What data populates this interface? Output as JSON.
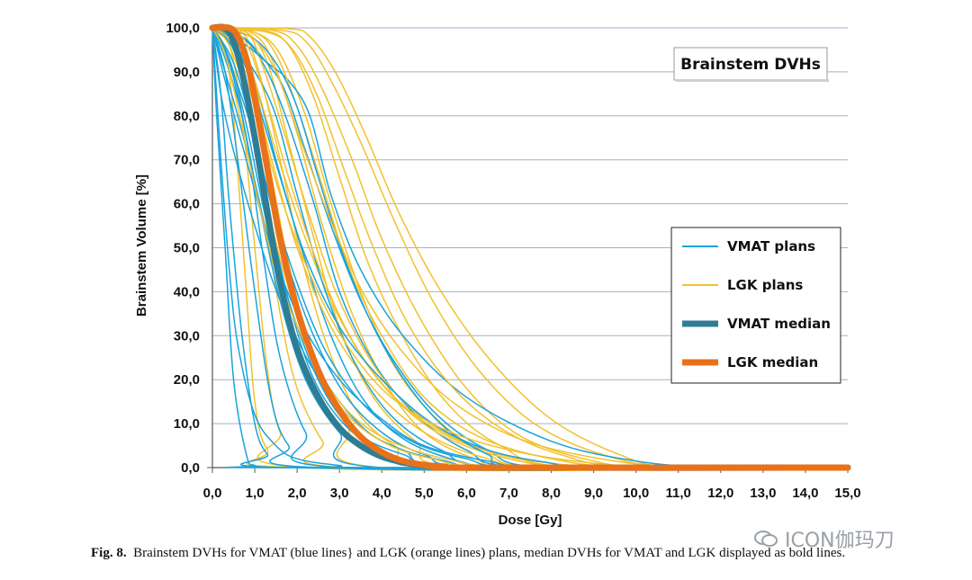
{
  "chart_data": {
    "type": "line",
    "title": "Brainstem DVHs",
    "xlabel": "Dose [Gy]",
    "ylabel": "Brainstem Volume [%]",
    "xlim": [
      0,
      15
    ],
    "ylim": [
      0,
      100
    ],
    "xticks": [
      "0,0",
      "1,0",
      "2,0",
      "3,0",
      "4,0",
      "5,0",
      "6,0",
      "7,0",
      "8,0",
      "9,0",
      "10,0",
      "11,0",
      "12,0",
      "13,0",
      "14,0",
      "15,0"
    ],
    "yticks": [
      "0,0",
      "10,0",
      "20,0",
      "30,0",
      "40,0",
      "50,0",
      "60,0",
      "70,0",
      "80,0",
      "90,0",
      "100,0"
    ],
    "grid": "horizontal",
    "legend_position": "right",
    "colors": {
      "vmat": "#1aa3dc",
      "lgk": "#f2c12e",
      "vmat_median": "#2f7d95",
      "lgk_median": "#e8711a",
      "grid": "#9fb3c8"
    },
    "legend": [
      {
        "label": "VMAT plans",
        "key": "vmat",
        "width": 2
      },
      {
        "label": "LGK plans",
        "key": "lgk",
        "width": 2
      },
      {
        "label": "VMAT median",
        "key": "vmat_median",
        "width": 7
      },
      {
        "label": "LGK median",
        "key": "lgk_median",
        "width": 7
      }
    ],
    "series": [
      {
        "name": "VMAT median",
        "key": "vmat_median",
        "x": [
          0.0,
          0.3,
          0.5,
          0.7,
          1.0,
          1.3,
          1.6,
          2.0,
          2.5,
          3.0,
          3.5,
          4.0,
          4.5,
          5.0,
          5.5,
          6.0,
          15.0
        ],
        "y": [
          100,
          100,
          97,
          90,
          75,
          58,
          42,
          27,
          16,
          9,
          5,
          2.5,
          1.2,
          0.5,
          0.2,
          0,
          0
        ]
      },
      {
        "name": "LGK median",
        "key": "lgk_median",
        "x": [
          0.0,
          0.4,
          0.6,
          0.8,
          1.0,
          1.3,
          1.6,
          2.0,
          2.5,
          3.0,
          3.5,
          4.0,
          4.5,
          5.0,
          5.5,
          6.0,
          15.0
        ],
        "y": [
          100,
          100,
          98,
          93,
          84,
          68,
          52,
          36,
          22,
          13,
          7,
          3.5,
          1.5,
          0.6,
          0.2,
          0,
          0
        ]
      }
    ],
    "vmat_plans": [
      {
        "x": [
          0.0,
          0.1,
          0.3,
          0.5,
          0.8,
          1.0,
          1.5
        ],
        "y": [
          100,
          80,
          50,
          20,
          3,
          0.5,
          0
        ]
      },
      {
        "x": [
          0.0,
          0.2,
          0.4,
          0.7,
          1.0,
          1.3,
          1.8
        ],
        "y": [
          100,
          85,
          60,
          30,
          10,
          3,
          0
        ]
      },
      {
        "x": [
          0.0,
          0.3,
          0.6,
          1.0,
          1.4,
          1.8,
          2.5
        ],
        "y": [
          100,
          90,
          70,
          40,
          15,
          5,
          0
        ]
      },
      {
        "x": [
          0.0,
          0.4,
          0.8,
          1.2,
          1.6,
          2.2,
          3.0
        ],
        "y": [
          100,
          92,
          75,
          48,
          25,
          8,
          0
        ]
      },
      {
        "x": [
          0.0,
          0.3,
          0.7,
          1.1,
          1.6,
          2.2,
          3.0,
          4.0
        ],
        "y": [
          100,
          93,
          80,
          60,
          38,
          20,
          8,
          0
        ]
      },
      {
        "x": [
          0.0,
          0.5,
          0.9,
          1.3,
          1.8,
          2.4,
          3.2,
          4.2,
          5.5
        ],
        "y": [
          100,
          95,
          80,
          60,
          38,
          20,
          9,
          3,
          0
        ]
      },
      {
        "x": [
          0.0,
          0.4,
          0.8,
          1.3,
          1.9,
          2.6,
          3.4,
          4.5,
          6.0
        ],
        "y": [
          100,
          93,
          78,
          55,
          35,
          18,
          8,
          3,
          0
        ]
      },
      {
        "x": [
          0.0,
          0.6,
          1.0,
          1.5,
          2.1,
          2.8,
          3.6,
          4.6,
          6.0,
          7.0
        ],
        "y": [
          100,
          97,
          88,
          70,
          50,
          30,
          15,
          6,
          1,
          0
        ]
      },
      {
        "x": [
          0.0,
          0.5,
          1.0,
          1.6,
          2.3,
          3.1,
          4.0,
          5.0,
          6.5
        ],
        "y": [
          100,
          92,
          75,
          52,
          32,
          17,
          8,
          3,
          0
        ]
      },
      {
        "x": [
          0.0,
          0.3,
          0.6,
          1.0,
          1.5,
          2.2,
          3.0,
          4.0,
          5.5,
          7.0
        ],
        "y": [
          100,
          90,
          80,
          65,
          45,
          28,
          15,
          6,
          1.5,
          0
        ]
      },
      {
        "x": [
          0.0,
          0.8,
          1.3,
          1.8,
          2.4,
          3.0,
          3.8,
          4.8,
          6.0,
          7.5
        ],
        "y": [
          100,
          97,
          90,
          78,
          60,
          40,
          24,
          12,
          4,
          0
        ]
      },
      {
        "x": [
          0.0,
          0.2,
          0.5,
          1.0,
          1.6,
          2.4,
          3.4,
          4.5,
          6.0
        ],
        "y": [
          100,
          85,
          72,
          55,
          38,
          22,
          10,
          4,
          0
        ]
      },
      {
        "x": [
          0.0,
          0.7,
          1.2,
          1.7,
          2.2,
          2.8,
          3.5,
          4.3,
          5.3,
          6.5,
          8.0
        ],
        "y": [
          100,
          98,
          93,
          86,
          72,
          55,
          38,
          24,
          12,
          4,
          0
        ]
      },
      {
        "x": [
          0.0,
          0.5,
          1.0,
          1.5,
          2.0,
          2.6,
          3.3,
          4.2,
          5.4,
          7.0
        ],
        "y": [
          100,
          96,
          90,
          80,
          62,
          42,
          25,
          12,
          4,
          0
        ]
      },
      {
        "x": [
          0.0,
          0.8,
          1.3,
          1.8,
          2.3,
          2.8,
          3.5,
          4.5,
          6.0,
          8.0,
          10.0,
          12.0
        ],
        "y": [
          100,
          96,
          92,
          88,
          80,
          62,
          45,
          30,
          16,
          6,
          1.5,
          0
        ]
      },
      {
        "x": [
          0.0,
          0.4,
          0.9,
          1.4,
          2.0,
          2.7,
          3.6,
          4.7,
          6.0,
          7.5
        ],
        "y": [
          100,
          92,
          78,
          60,
          42,
          26,
          14,
          6,
          2,
          0
        ]
      },
      {
        "x": [
          0.0,
          0.3,
          0.8,
          1.4,
          2.1,
          3.0,
          4.0,
          5.0,
          6.5,
          8.0
        ],
        "y": [
          100,
          88,
          70,
          50,
          33,
          20,
          11,
          5,
          1.5,
          0
        ]
      },
      {
        "x": [
          0.0,
          0.6,
          1.1,
          1.6,
          2.2,
          3.0,
          4.0,
          5.2,
          6.5,
          8.0,
          9.0
        ],
        "y": [
          100,
          95,
          82,
          66,
          48,
          32,
          20,
          10,
          4,
          1,
          0
        ]
      },
      {
        "x": [
          0.0,
          0.9,
          1.5,
          2.0,
          2.5,
          3.1,
          3.8,
          4.6,
          5.5,
          6.5,
          7.5
        ],
        "y": [
          100,
          98,
          92,
          82,
          66,
          48,
          32,
          19,
          9,
          3,
          0
        ]
      },
      {
        "x": [
          0.0,
          0.2,
          0.4,
          0.6,
          1.0,
          1.5,
          2.0,
          3.0,
          4.0
        ],
        "y": [
          100,
          70,
          45,
          28,
          12,
          5,
          2,
          0.5,
          0
        ]
      }
    ],
    "lgk_plans": [
      {
        "x": [
          0.0,
          0.3,
          0.5,
          0.8,
          1.0,
          1.3,
          2.0
        ],
        "y": [
          100,
          95,
          80,
          40,
          15,
          4,
          0
        ]
      },
      {
        "x": [
          0.0,
          0.4,
          0.7,
          1.0,
          1.3,
          1.6,
          2.2
        ],
        "y": [
          100,
          96,
          80,
          50,
          22,
          8,
          0
        ]
      },
      {
        "x": [
          0.0,
          0.5,
          0.8,
          1.2,
          1.6,
          2.0,
          2.6,
          3.2
        ],
        "y": [
          100,
          97,
          85,
          60,
          35,
          18,
          6,
          0
        ]
      },
      {
        "x": [
          0.0,
          0.6,
          1.0,
          1.4,
          1.9,
          2.5,
          3.2,
          4.0
        ],
        "y": [
          100,
          98,
          88,
          66,
          42,
          22,
          9,
          0
        ]
      },
      {
        "x": [
          0.0,
          0.7,
          1.1,
          1.6,
          2.1,
          2.7,
          3.4,
          4.3,
          5.5
        ],
        "y": [
          100,
          99,
          90,
          70,
          48,
          28,
          13,
          5,
          0
        ]
      },
      {
        "x": [
          0.0,
          0.8,
          1.3,
          1.8,
          2.4,
          3.0,
          3.8,
          4.8,
          6.0
        ],
        "y": [
          100,
          99,
          92,
          74,
          52,
          32,
          16,
          6,
          0
        ]
      },
      {
        "x": [
          0.0,
          0.9,
          1.4,
          2.0,
          2.6,
          3.3,
          4.1,
          5.0,
          6.2,
          7.5
        ],
        "y": [
          100,
          99,
          93,
          76,
          55,
          35,
          19,
          8,
          2,
          0
        ]
      },
      {
        "x": [
          0.0,
          1.0,
          1.6,
          2.2,
          2.8,
          3.5,
          4.3,
          5.3,
          6.5,
          8.0
        ],
        "y": [
          100,
          99,
          94,
          80,
          60,
          40,
          23,
          11,
          3,
          0
        ]
      },
      {
        "x": [
          0.0,
          1.2,
          1.8,
          2.4,
          3.0,
          3.7,
          4.6,
          5.6,
          6.8,
          8.5
        ],
        "y": [
          100,
          99.5,
          96,
          84,
          66,
          46,
          28,
          14,
          5,
          0
        ]
      },
      {
        "x": [
          0.0,
          1.4,
          2.0,
          2.6,
          3.3,
          4.0,
          4.9,
          6.0,
          7.3,
          9.0,
          10.5
        ],
        "y": [
          100,
          99.5,
          96,
          86,
          70,
          52,
          34,
          18,
          7,
          1.5,
          0
        ]
      },
      {
        "x": [
          0.0,
          1.6,
          2.2,
          2.8,
          3.5,
          4.3,
          5.2,
          6.3,
          7.6,
          9.2,
          11.0
        ],
        "y": [
          100,
          99.5,
          97,
          88,
          74,
          56,
          38,
          22,
          10,
          3,
          0
        ]
      },
      {
        "x": [
          0.0,
          1.8,
          2.3,
          2.9,
          3.6,
          4.4,
          5.4,
          6.6,
          8.0,
          9.6,
          11.0
        ],
        "y": [
          100,
          99.8,
          98,
          90,
          76,
          58,
          40,
          24,
          11,
          3,
          0
        ]
      },
      {
        "x": [
          0.0,
          0.5,
          0.9,
          1.4,
          2.0,
          2.8,
          3.8,
          5.0,
          6.5,
          8.0
        ],
        "y": [
          100,
          97,
          88,
          70,
          50,
          32,
          18,
          8,
          2,
          0
        ]
      },
      {
        "x": [
          0.0,
          0.6,
          1.0,
          1.5,
          2.2,
          3.0,
          4.0,
          5.3,
          7.0,
          9.0
        ],
        "y": [
          100,
          98,
          88,
          72,
          52,
          34,
          19,
          8,
          2,
          0
        ]
      },
      {
        "x": [
          0.0,
          0.8,
          1.2,
          1.7,
          2.3,
          3.0,
          3.9,
          5.0,
          6.4,
          8.0,
          10.0
        ],
        "y": [
          100,
          99,
          91,
          76,
          57,
          38,
          22,
          11,
          4,
          1,
          0
        ]
      },
      {
        "x": [
          0.0,
          0.4,
          0.8,
          1.2,
          1.7,
          2.3,
          3.0,
          4.0,
          5.2,
          7.0
        ],
        "y": [
          100,
          96,
          84,
          64,
          44,
          27,
          14,
          6,
          2,
          0
        ]
      },
      {
        "x": [
          0.0,
          1.0,
          1.5,
          2.0,
          2.6,
          3.2,
          4.0,
          5.0,
          6.3,
          8.0,
          10.0
        ],
        "y": [
          100,
          99,
          94,
          82,
          64,
          46,
          30,
          16,
          7,
          2,
          0
        ]
      },
      {
        "x": [
          0.0,
          0.7,
          1.2,
          1.8,
          2.5,
          3.3,
          4.3,
          5.6,
          7.2,
          9.0
        ],
        "y": [
          100,
          98,
          86,
          66,
          46,
          29,
          16,
          7,
          2,
          0
        ]
      },
      {
        "x": [
          0.0,
          1.3,
          1.9,
          2.5,
          3.1,
          3.8,
          4.6,
          5.6,
          6.8,
          8.2,
          10.0
        ],
        "y": [
          100,
          99,
          95,
          84,
          68,
          50,
          33,
          19,
          9,
          3,
          0
        ]
      },
      {
        "x": [
          0.0,
          0.5,
          1.0,
          1.6,
          2.3,
          3.1,
          4.1,
          5.4,
          7.0,
          9.0,
          11.0
        ],
        "y": [
          100,
          96,
          82,
          62,
          44,
          29,
          17,
          9,
          4,
          1,
          0
        ]
      },
      {
        "x": [
          0.0,
          0.9,
          1.5,
          2.1,
          2.8,
          3.6,
          4.6,
          5.8,
          7.4,
          9.5,
          11.5
        ],
        "y": [
          100,
          98,
          90,
          74,
          56,
          39,
          25,
          14,
          6,
          1.5,
          0
        ]
      },
      {
        "x": [
          0.0,
          0.3,
          0.6,
          1.0,
          1.5,
          2.2,
          3.0,
          4.0,
          5.5,
          7.5
        ],
        "y": [
          100,
          94,
          82,
          64,
          45,
          28,
          15,
          7,
          2,
          0
        ]
      }
    ]
  },
  "caption": {
    "label": "Fig. 8.",
    "text": "Brainstem DVHs for VMAT (blue lines} and LGK (orange lines) plans, median DVHs for VMAT and LGK displayed as bold lines."
  },
  "watermark": {
    "text": "ICON伽玛刀"
  }
}
